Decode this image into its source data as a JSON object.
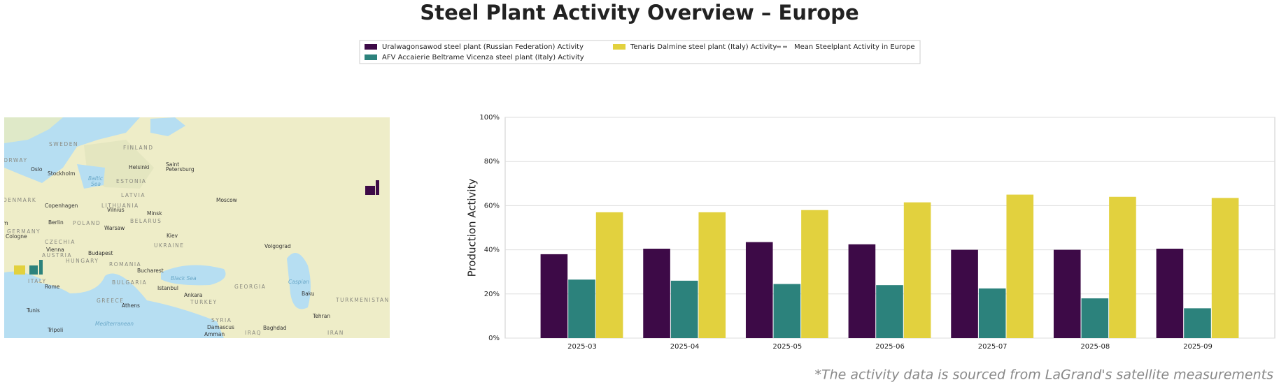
{
  "chart_data": {
    "type": "bar",
    "title": "Steel Plant Activity Overview – Europe",
    "ylabel": "Production Activity",
    "footnote": "*The activity data is sourced from LaGrand's satellite measurements",
    "categories": [
      "2025-03",
      "2025-04",
      "2025-05",
      "2025-06",
      "2025-07",
      "2025-08",
      "2025-09"
    ],
    "series": [
      {
        "name": "Uralwagonsawod steel plant (Russian Federation) Activity",
        "color": "#3d0a47",
        "values": [
          38,
          40.5,
          43.5,
          42.5,
          40,
          40,
          40.5
        ]
      },
      {
        "name": "AFV Accaierie Beltrame Vicenza steel plant (Italy) Activity",
        "color": "#2c827c",
        "values": [
          26.5,
          26,
          24.5,
          24,
          22.5,
          18,
          13.5
        ]
      },
      {
        "name": "Tenaris Dalmine steel plant (Italy) Activity",
        "color": "#e2d13e",
        "values": [
          57,
          57,
          58,
          61.5,
          65,
          64,
          63.5
        ]
      },
      {
        "name": "Mean Steelplant Activity in Europe",
        "color": "#888888",
        "style": "dashed",
        "values": [
          null,
          null,
          null,
          null,
          null,
          null,
          null
        ]
      }
    ],
    "ylim": [
      0,
      100
    ],
    "yticks": [
      {
        "value": 0,
        "label": "0%"
      },
      {
        "value": 20,
        "label": "20%"
      },
      {
        "value": 40,
        "label": "40%"
      },
      {
        "value": 60,
        "label": "60%"
      },
      {
        "value": 80,
        "label": "80%"
      },
      {
        "value": 100,
        "label": "100%"
      }
    ],
    "grid": true,
    "legend": "top"
  },
  "map": {
    "labels": [
      "SWEDEN",
      "FINLAND",
      "NORWAY",
      "Oslo",
      "Stockholm",
      "Helsinki",
      "Saint",
      "Petersburg",
      "ESTONIA",
      "Baltic",
      "Sea",
      "LATVIA",
      "DENMARK",
      "Copenhagen",
      "LITHUANIA",
      "Vilnius",
      "Minsk",
      "Moscow",
      "BELARUS",
      "Amsterdam",
      "Berlin",
      "POLAND",
      "Warsaw",
      "GERMANY",
      "Cologne",
      "CZECHIA",
      "Kiev",
      "UKRAINE",
      "Volgograd",
      "Vienna",
      "AUSTRIA",
      "Budapest",
      "HUNGARY",
      "ROMANIA",
      "Bucharest",
      "ITALY",
      "Rome",
      "BULGARIA",
      "Istanbul",
      "Ankara",
      "Black Sea",
      "GEORGIA",
      "Caspian",
      "Baku",
      "GREECE",
      "Athens",
      "TURKEY",
      "TURKMENISTAN",
      "Tunis",
      "SYRIA",
      "Damascus",
      "Tehran",
      "Tripoli",
      "Mediterranean",
      "Amman",
      "IRAQ",
      "Baghdad",
      "IRAN"
    ]
  }
}
